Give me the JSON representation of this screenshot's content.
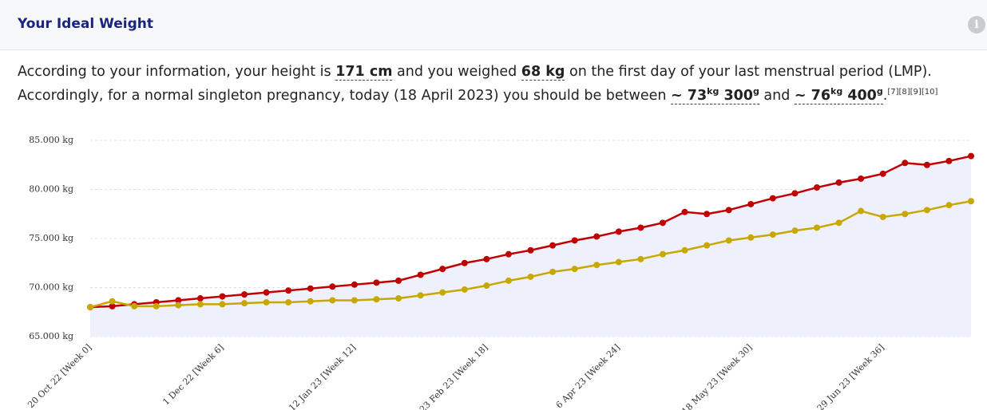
{
  "header": {
    "title": "Your Ideal Weight"
  },
  "summary": {
    "line1": {
      "t0": "According to your information, your height is ",
      "height": "171 cm",
      "t1": " and you weighed ",
      "weight": "68 kg",
      "t2": " on the first day of your last menstrual period (LMP)."
    },
    "line2": {
      "t0": "Accordingly, for a normal singleton pregnancy, today (18 April 2023) you should be between ",
      "low_kg": "~ 73",
      "kg_unit_1": "kg",
      "low_g": " 300",
      "g_unit_1": "g",
      "t1": " and ",
      "high_kg": "~ 76",
      "kg_unit_2": "kg",
      "high_g": " 400",
      "g_unit_2": "g",
      "t2": ".",
      "refs": [
        "[7]",
        "[8]",
        "[9]",
        "[10]"
      ]
    }
  },
  "chart_data": {
    "type": "line",
    "categories": [
      "20 Oct 22 [Week 0]",
      null,
      null,
      null,
      null,
      null,
      "1 Dec 22 [Week 6]",
      null,
      null,
      null,
      null,
      null,
      "12 Jan 23 [Week 12]",
      null,
      null,
      null,
      null,
      null,
      "23 Feb 23 [Week 18]",
      null,
      null,
      null,
      null,
      null,
      "6 Apr 23 [Week 24]",
      null,
      null,
      null,
      null,
      null,
      "18 May 23 [Week 30]",
      null,
      null,
      null,
      null,
      null,
      "29 Jun 23 [Week 36]",
      null,
      null,
      null,
      null
    ],
    "series": [
      {
        "color": "#c00000",
        "values": [
          68.0,
          68.1,
          68.3,
          68.5,
          68.7,
          68.9,
          69.1,
          69.3,
          69.5,
          69.7,
          69.9,
          70.1,
          70.3,
          70.5,
          70.7,
          71.3,
          71.9,
          72.5,
          72.9,
          73.4,
          73.8,
          74.3,
          74.8,
          75.2,
          75.7,
          76.1,
          76.6,
          77.7,
          77.5,
          77.9,
          78.5,
          79.1,
          79.6,
          80.2,
          80.7,
          81.1,
          81.6,
          82.7,
          82.5,
          82.9,
          83.4
        ]
      },
      {
        "color": "#c8a800",
        "values": [
          68.0,
          68.6,
          68.1,
          68.1,
          68.2,
          68.3,
          68.3,
          68.4,
          68.5,
          68.5,
          68.6,
          68.7,
          68.7,
          68.8,
          68.9,
          69.2,
          69.5,
          69.8,
          70.2,
          70.7,
          71.1,
          71.6,
          71.9,
          72.3,
          72.6,
          72.9,
          73.4,
          73.8,
          74.3,
          74.8,
          75.1,
          75.4,
          75.8,
          76.1,
          76.6,
          77.8,
          77.2,
          77.5,
          77.9,
          78.4,
          78.8
        ]
      }
    ],
    "ylim": [
      65,
      85
    ],
    "yticks": [
      {
        "value": 65,
        "label": "65.000 kg"
      },
      {
        "value": 70,
        "label": "70.000 kg"
      },
      {
        "value": 75,
        "label": "75.000 kg"
      },
      {
        "value": 80,
        "label": "80.000 kg"
      },
      {
        "value": 85,
        "label": "85.000 kg"
      }
    ],
    "grid": true,
    "area_fill": "#eef1fb"
  }
}
